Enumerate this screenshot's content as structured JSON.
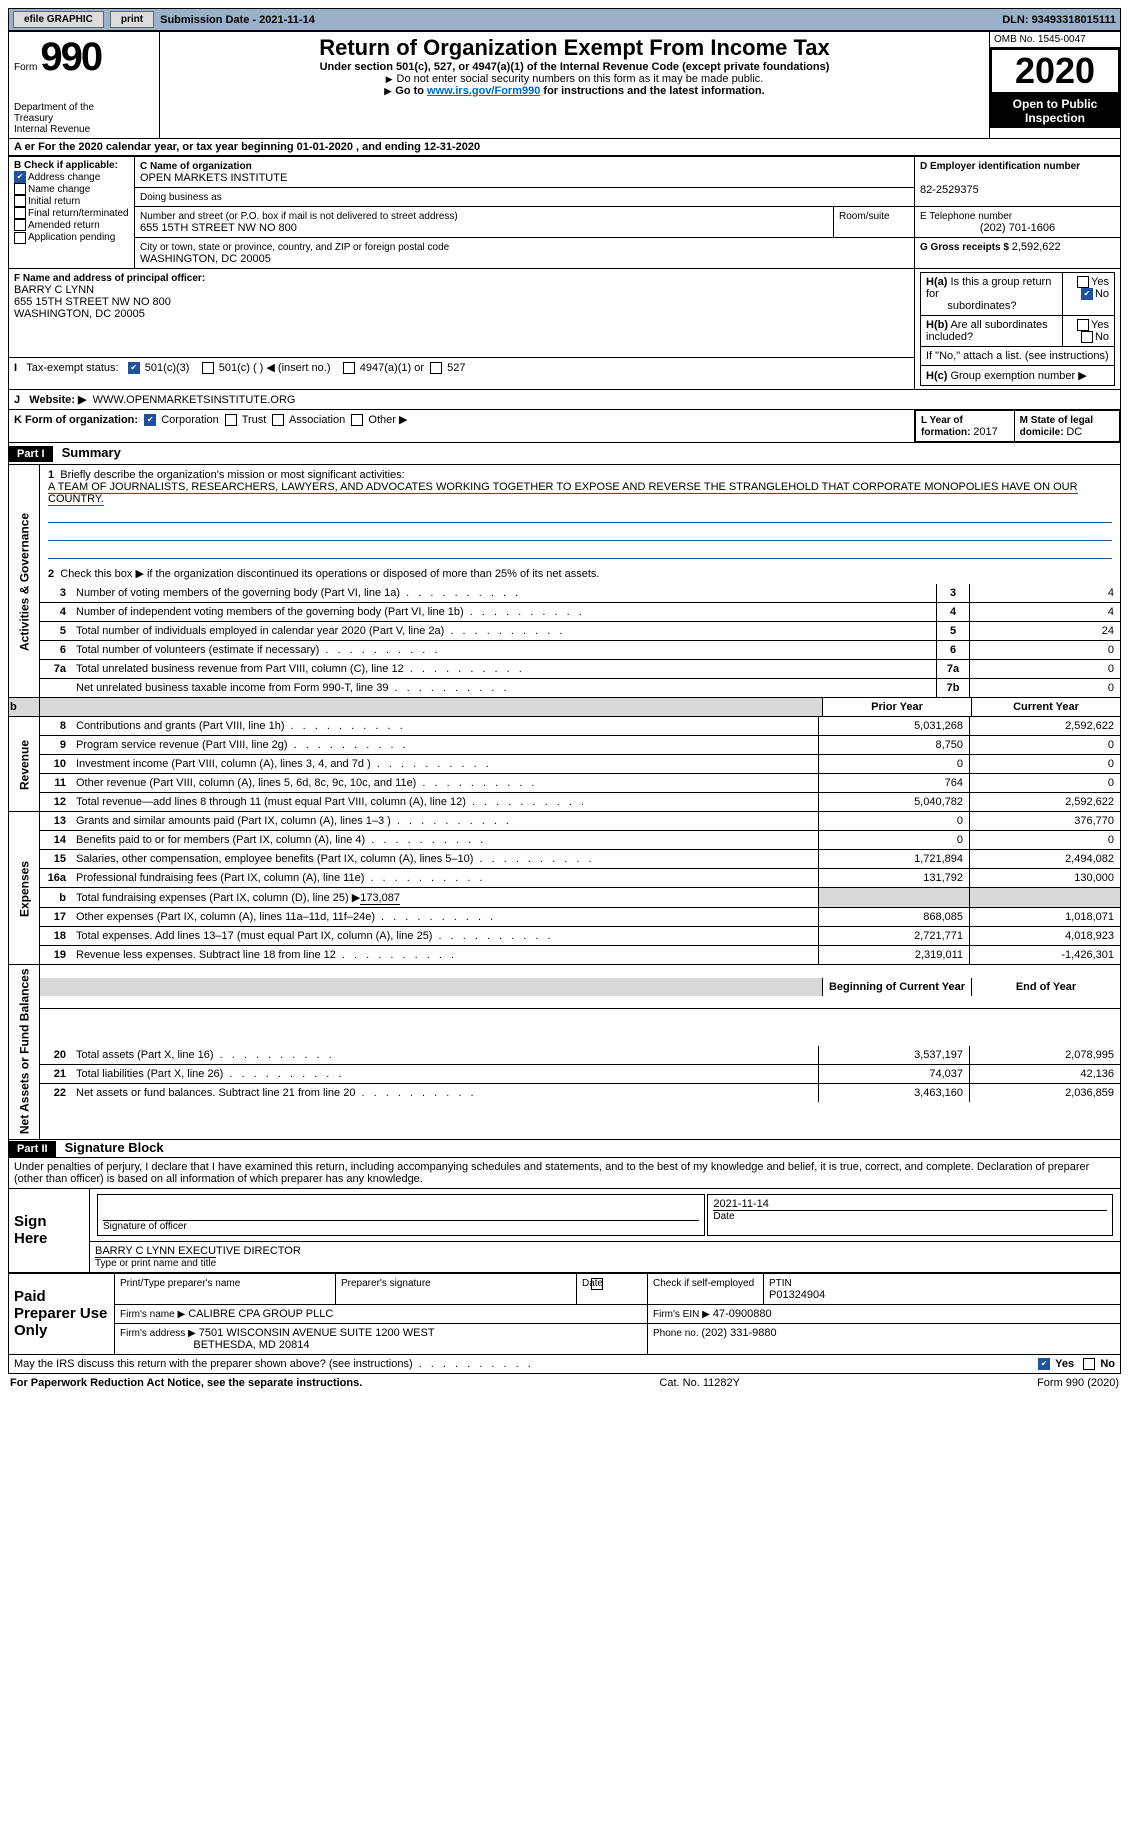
{
  "topbar": {
    "efile": "efile GRAPHIC",
    "print": "print",
    "submission_label": "Submission Date - ",
    "submission_date": "2021-11-14",
    "dln_label": "DLN: ",
    "dln": "93493318015111"
  },
  "header": {
    "form_word": "Form",
    "form_no": "990",
    "dept1": "Department of the",
    "dept2": "Treasury",
    "dept3": "Internal Revenue",
    "title": "Return of Organization Exempt From Income Tax",
    "subtitle": "Under section 501(c), 527, or 4947(a)(1) of the Internal Revenue Code (except private foundations)",
    "line1": "Do not enter social security numbers on this form as it may be made public.",
    "line2_pre": "Go to ",
    "line2_link": "www.irs.gov/Form990",
    "line2_post": " for instructions and the latest information.",
    "omb": "OMB No. 1545-0047",
    "year": "2020",
    "open1": "Open to Public",
    "open2": "Inspection"
  },
  "period": {
    "prefix_overlay": "A er",
    "text1": "For the 2020 calendar year, or tax year beginning ",
    "begin": "01-01-2020",
    "text2": " , and ending ",
    "end": "12-31-2020"
  },
  "boxB": {
    "label": "B Check if applicable:",
    "opts": [
      "Address change",
      "Name change",
      "Initial return",
      "Final return/terminated",
      "Amended return",
      "Application pending"
    ]
  },
  "boxC": {
    "label": "C Name of organization",
    "name": "OPEN MARKETS INSTITUTE",
    "dba_label": "Doing business as",
    "street_label": "Number and street (or P.O. box if mail is not delivered to street address)",
    "room_label": "Room/suite",
    "street": "655 15TH STREET NW NO 800",
    "city_label": "City or town, state or province, country, and ZIP or foreign postal code",
    "city": "WASHINGTON, DC  20005"
  },
  "boxD": {
    "label": "D Employer identification number",
    "value": "82-2529375"
  },
  "boxE": {
    "label": "E Telephone number",
    "value": "(202) 701-1606"
  },
  "boxG": {
    "label": "G Gross receipts $ ",
    "value": "2,592,622"
  },
  "boxF": {
    "label": "F  Name and address of principal officer:",
    "name": "BARRY C LYNN",
    "street": "655 15TH STREET NW NO 800",
    "city": "WASHINGTON, DC  20005"
  },
  "boxH": {
    "a_q": "Is this a group return for",
    "a_q2": "subordinates?",
    "b_q": "Are all subordinates included?",
    "b_note": "If \"No,\" attach a list. (see instructions)",
    "c_q": "Group exemption number ▶",
    "yes": "Yes",
    "no": "No"
  },
  "boxI": {
    "label": "Tax-exempt status:",
    "o1": "501(c)(3)",
    "o2": "501(c) (  ) ◀ (insert no.)",
    "o3": "4947(a)(1) or",
    "o4": "527"
  },
  "boxJ": {
    "label": "Website: ▶",
    "value": "WWW.OPENMARKETSINSTITUTE.ORG"
  },
  "boxK": {
    "label": "K Form of organization:",
    "o1": "Corporation",
    "o2": "Trust",
    "o3": "Association",
    "o4": "Other ▶"
  },
  "boxL": {
    "label": "L Year of formation: ",
    "value": "2017"
  },
  "boxM": {
    "label": "M State of legal domicile: ",
    "value": "DC"
  },
  "partI": {
    "bar": "Part I",
    "title": "Summary",
    "q1_label": "Briefly describe the organization's mission or most significant activities:",
    "q1_text": "A TEAM OF JOURNALISTS, RESEARCHERS, LAWYERS, AND ADVOCATES WORKING TOGETHER TO EXPOSE AND REVERSE THE STRANGLEHOLD THAT CORPORATE MONOPOLIES HAVE ON OUR COUNTRY.",
    "q2": "Check this box ▶       if the organization discontinued its operations or disposed of more than 25% of its net assets.",
    "sidebars": {
      "gov": "Activities & Governance",
      "rev": "Revenue",
      "exp": "Expenses",
      "net": "Net Assets or Fund Balances"
    },
    "gov_lines": [
      {
        "n": "3",
        "t": "Number of voting members of the governing body (Part VI, line 1a)",
        "k": "3",
        "v": "4"
      },
      {
        "n": "4",
        "t": "Number of independent voting members of the governing body (Part VI, line 1b)",
        "k": "4",
        "v": "4"
      },
      {
        "n": "5",
        "t": "Total number of individuals employed in calendar year 2020 (Part V, line 2a)",
        "k": "5",
        "v": "24"
      },
      {
        "n": "6",
        "t": "Total number of volunteers (estimate if necessary)",
        "k": "6",
        "v": "0"
      },
      {
        "n": "7a",
        "t": "Total unrelated business revenue from Part VIII, column (C), line 12",
        "k": "7a",
        "v": "0"
      },
      {
        "n": "",
        "t": "Net unrelated business taxable income from Form 990-T, line 39",
        "k": "7b",
        "v": "0"
      }
    ],
    "col_hdr_prior": "Prior Year",
    "col_hdr_current": "Current Year",
    "rev_lines": [
      {
        "n": "8",
        "t": "Contributions and grants (Part VIII, line 1h)",
        "p": "5,031,268",
        "c": "2,592,622"
      },
      {
        "n": "9",
        "t": "Program service revenue (Part VIII, line 2g)",
        "p": "8,750",
        "c": "0"
      },
      {
        "n": "10",
        "t": "Investment income (Part VIII, column (A), lines 3, 4, and 7d )",
        "p": "0",
        "c": "0"
      },
      {
        "n": "11",
        "t": "Other revenue (Part VIII, column (A), lines 5, 6d, 8c, 9c, 10c, and 11e)",
        "p": "764",
        "c": "0"
      },
      {
        "n": "12",
        "t": "Total revenue—add lines 8 through 11 (must equal Part VIII, column (A), line 12)",
        "p": "5,040,782",
        "c": "2,592,622"
      }
    ],
    "exp_lines": [
      {
        "n": "13",
        "t": "Grants and similar amounts paid (Part IX, column (A), lines 1–3 )",
        "p": "0",
        "c": "376,770"
      },
      {
        "n": "14",
        "t": "Benefits paid to or for members (Part IX, column (A), line 4)",
        "p": "0",
        "c": "0"
      },
      {
        "n": "15",
        "t": "Salaries, other compensation, employee benefits (Part IX, column (A), lines 5–10)",
        "p": "1,721,894",
        "c": "2,494,082"
      },
      {
        "n": "16a",
        "t": "Professional fundraising fees (Part IX, column (A), line 11e)",
        "p": "131,792",
        "c": "130,000"
      }
    ],
    "exp_b": {
      "n": "b",
      "t": "Total fundraising expenses (Part IX, column (D), line 25) ▶",
      "v": "173,087"
    },
    "exp_lines2": [
      {
        "n": "17",
        "t": "Other expenses (Part IX, column (A), lines 11a–11d, 11f–24e)",
        "p": "868,085",
        "c": "1,018,071"
      },
      {
        "n": "18",
        "t": "Total expenses. Add lines 13–17 (must equal Part IX, column (A), line 25)",
        "p": "2,721,771",
        "c": "4,018,923"
      },
      {
        "n": "19",
        "t": "Revenue less expenses. Subtract line 18 from line 12",
        "p": "2,319,011",
        "c": "-1,426,301"
      }
    ],
    "col_hdr_beg": "Beginning of Current Year",
    "col_hdr_end": "End of Year",
    "net_lines": [
      {
        "n": "20",
        "t": "Total assets (Part X, line 16)",
        "p": "3,537,197",
        "c": "2,078,995"
      },
      {
        "n": "21",
        "t": "Total liabilities (Part X, line 26)",
        "p": "74,037",
        "c": "42,136"
      },
      {
        "n": "22",
        "t": "Net assets or fund balances. Subtract line 21 from line 20",
        "p": "3,463,160",
        "c": "2,036,859"
      }
    ]
  },
  "partII": {
    "bar": "Part II",
    "title": "Signature Block",
    "decl": "Under penalties of perjury, I declare that I have examined this return, including accompanying schedules and statements, and to the best of my knowledge and belief, it is true, correct, and complete. Declaration of preparer (other than officer) is based on all information of which preparer has any knowledge.",
    "sign_here": "Sign Here",
    "sig_officer": "Signature of officer",
    "sig_date": "2021-11-14",
    "date_lbl": "Date",
    "officer_name": "BARRY C LYNN  EXECUTIVE DIRECTOR",
    "officer_type": "Type or print name and title",
    "paid": "Paid Preparer Use Only",
    "prep_name_lbl": "Print/Type preparer's name",
    "prep_sig_lbl": "Preparer's signature",
    "prep_date_lbl": "Date",
    "prep_check": "Check        if self-employed",
    "ptin_lbl": "PTIN",
    "ptin": "P01324904",
    "firm_name_lbl": "Firm's name    ▶",
    "firm_name": "CALIBRE CPA GROUP PLLC",
    "firm_ein_lbl": "Firm's EIN ▶",
    "firm_ein": "47-0900880",
    "firm_addr_lbl": "Firm's address ▶",
    "firm_addr1": "7501 WISCONSIN AVENUE SUITE 1200 WEST",
    "firm_addr2": "BETHESDA, MD  20814",
    "firm_phone_lbl": "Phone no. ",
    "firm_phone": "(202) 331-9880",
    "discuss": "May the IRS discuss this return with the preparer shown above? (see instructions)"
  },
  "footer": {
    "left": "For Paperwork Reduction Act Notice, see the separate instructions.",
    "mid": "Cat. No. 11282Y",
    "right": "Form 990 (2020)"
  },
  "colors": {
    "topbar_bg": "#9bb0c9",
    "link": "#0066cc",
    "check_blue": "#2050a0",
    "shade": "#d9d9d9"
  }
}
